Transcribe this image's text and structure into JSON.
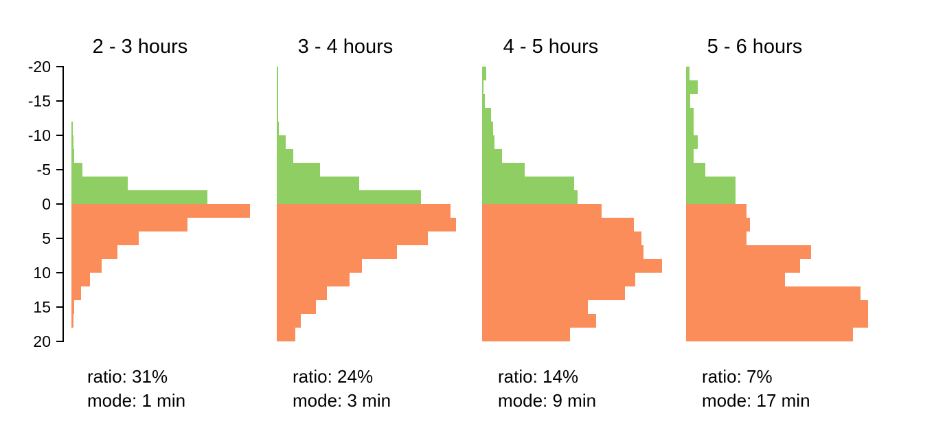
{
  "figure": {
    "background": "#ffffff",
    "axis_color": "#000000",
    "early_color": "#8ece62",
    "late_color": "#fb8d5a"
  },
  "chart_data": {
    "type": "bar",
    "orientation": "horizontal",
    "description": "Four horizontal back-to-back histograms of minutes (bin width 2 min, range -20 to 20). Green bars = negative minutes (early), orange bars = positive minutes (late). Bar lengths are relative frequencies, 1.0 = longest bar. No x-axis labels shown.",
    "ylim": [
      -20,
      20
    ],
    "bin_width": 2,
    "y_ticks": [
      -20,
      -15,
      -10,
      -5,
      0,
      5,
      10,
      15,
      20
    ],
    "legend": "none",
    "grid": false,
    "panels": [
      {
        "title": "2 - 3 hours",
        "ratio_label": "ratio: 31%",
        "mode_label": "mode: 1 min",
        "ratio_percent": 31,
        "mode_min": 1,
        "bins": [
          {
            "range": [
              -12,
              -10
            ],
            "rel": 0.006
          },
          {
            "range": [
              -10,
              -8
            ],
            "rel": 0.01
          },
          {
            "range": [
              -8,
              -6
            ],
            "rel": 0.015
          },
          {
            "range": [
              -6,
              -4
            ],
            "rel": 0.061
          },
          {
            "range": [
              -4,
              -2
            ],
            "rel": 0.313
          },
          {
            "range": [
              -2,
              0
            ],
            "rel": 0.756
          },
          {
            "range": [
              0,
              2
            ],
            "rel": 0.992
          },
          {
            "range": [
              2,
              4
            ],
            "rel": 0.645
          },
          {
            "range": [
              4,
              6
            ],
            "rel": 0.374
          },
          {
            "range": [
              6,
              8
            ],
            "rel": 0.256
          },
          {
            "range": [
              8,
              10
            ],
            "rel": 0.168
          },
          {
            "range": [
              10,
              12
            ],
            "rel": 0.103
          },
          {
            "range": [
              12,
              14
            ],
            "rel": 0.053
          },
          {
            "range": [
              14,
              16
            ],
            "rel": 0.017
          },
          {
            "range": [
              16,
              18
            ],
            "rel": 0.011
          }
        ]
      },
      {
        "title": "3 - 4 hours",
        "ratio_label": "ratio: 24%",
        "mode_label": "mode: 3 min",
        "ratio_percent": 24,
        "mode_min": 3,
        "bins": [
          {
            "range": [
              -20,
              -18
            ],
            "rel": 0.008
          },
          {
            "range": [
              -18,
              -16
            ],
            "rel": 0.008
          },
          {
            "range": [
              -16,
              -14
            ],
            "rel": 0.008
          },
          {
            "range": [
              -14,
              -12
            ],
            "rel": 0.008
          },
          {
            "range": [
              -12,
              -10
            ],
            "rel": 0.011
          },
          {
            "range": [
              -10,
              -8
            ],
            "rel": 0.05
          },
          {
            "range": [
              -8,
              -6
            ],
            "rel": 0.092
          },
          {
            "range": [
              -6,
              -4
            ],
            "rel": 0.24
          },
          {
            "range": [
              -4,
              -2
            ],
            "rel": 0.458
          },
          {
            "range": [
              -2,
              0
            ],
            "rel": 0.802
          },
          {
            "range": [
              0,
              2
            ],
            "rel": 0.966
          },
          {
            "range": [
              2,
              4
            ],
            "rel": 0.996
          },
          {
            "range": [
              4,
              6
            ],
            "rel": 0.84
          },
          {
            "range": [
              6,
              8
            ],
            "rel": 0.668
          },
          {
            "range": [
              8,
              10
            ],
            "rel": 0.473
          },
          {
            "range": [
              10,
              12
            ],
            "rel": 0.405
          },
          {
            "range": [
              12,
              14
            ],
            "rel": 0.279
          },
          {
            "range": [
              14,
              16
            ],
            "rel": 0.218
          },
          {
            "range": [
              16,
              18
            ],
            "rel": 0.134
          },
          {
            "range": [
              18,
              20
            ],
            "rel": 0.103
          }
        ]
      },
      {
        "title": "4 - 5 hours",
        "ratio_label": "ratio: 14%",
        "mode_label": "mode: 9 min",
        "ratio_percent": 14,
        "mode_min": 9,
        "bins": [
          {
            "range": [
              -20,
              -18
            ],
            "rel": 0.023
          },
          {
            "range": [
              -18,
              -16
            ],
            "rel": 0.008
          },
          {
            "range": [
              -16,
              -14
            ],
            "rel": 0.015
          },
          {
            "range": [
              -14,
              -12
            ],
            "rel": 0.05
          },
          {
            "range": [
              -12,
              -10
            ],
            "rel": 0.061
          },
          {
            "range": [
              -10,
              -8
            ],
            "rel": 0.069
          },
          {
            "range": [
              -8,
              -6
            ],
            "rel": 0.111
          },
          {
            "range": [
              -6,
              -4
            ],
            "rel": 0.237
          },
          {
            "range": [
              -4,
              -2
            ],
            "rel": 0.511
          },
          {
            "range": [
              -2,
              0
            ],
            "rel": 0.531
          },
          {
            "range": [
              0,
              2
            ],
            "rel": 0.664
          },
          {
            "range": [
              2,
              4
            ],
            "rel": 0.844
          },
          {
            "range": [
              4,
              6
            ],
            "rel": 0.885
          },
          {
            "range": [
              6,
              8
            ],
            "rel": 0.897
          },
          {
            "range": [
              8,
              10
            ],
            "rel": 1.0
          },
          {
            "range": [
              10,
              12
            ],
            "rel": 0.851
          },
          {
            "range": [
              12,
              14
            ],
            "rel": 0.794
          },
          {
            "range": [
              14,
              16
            ],
            "rel": 0.588
          },
          {
            "range": [
              16,
              18
            ],
            "rel": 0.634
          },
          {
            "range": [
              18,
              20
            ],
            "rel": 0.489
          }
        ]
      },
      {
        "title": "5 - 6 hours",
        "ratio_label": "ratio: 7%",
        "mode_label": "mode: 17 min",
        "ratio_percent": 7,
        "mode_min": 17,
        "bins": [
          {
            "range": [
              -20,
              -18
            ],
            "rel": 0.019
          },
          {
            "range": [
              -18,
              -16
            ],
            "rel": 0.065
          },
          {
            "range": [
              -16,
              -14
            ],
            "rel": 0.023
          },
          {
            "range": [
              -14,
              -12
            ],
            "rel": 0.042
          },
          {
            "range": [
              -12,
              -10
            ],
            "rel": 0.042
          },
          {
            "range": [
              -10,
              -8
            ],
            "rel": 0.065
          },
          {
            "range": [
              -8,
              -6
            ],
            "rel": 0.042
          },
          {
            "range": [
              -6,
              -4
            ],
            "rel": 0.107
          },
          {
            "range": [
              -4,
              -2
            ],
            "rel": 0.275
          },
          {
            "range": [
              -2,
              0
            ],
            "rel": 0.275
          },
          {
            "range": [
              0,
              2
            ],
            "rel": 0.336
          },
          {
            "range": [
              2,
              4
            ],
            "rel": 0.355
          },
          {
            "range": [
              4,
              6
            ],
            "rel": 0.336
          },
          {
            "range": [
              6,
              8
            ],
            "rel": 0.695
          },
          {
            "range": [
              8,
              10
            ],
            "rel": 0.634
          },
          {
            "range": [
              10,
              12
            ],
            "rel": 0.55
          },
          {
            "range": [
              12,
              14
            ],
            "rel": 0.969
          },
          {
            "range": [
              14,
              16
            ],
            "rel": 1.012
          },
          {
            "range": [
              16,
              18
            ],
            "rel": 1.012
          },
          {
            "range": [
              18,
              20
            ],
            "rel": 0.927
          }
        ]
      }
    ]
  }
}
